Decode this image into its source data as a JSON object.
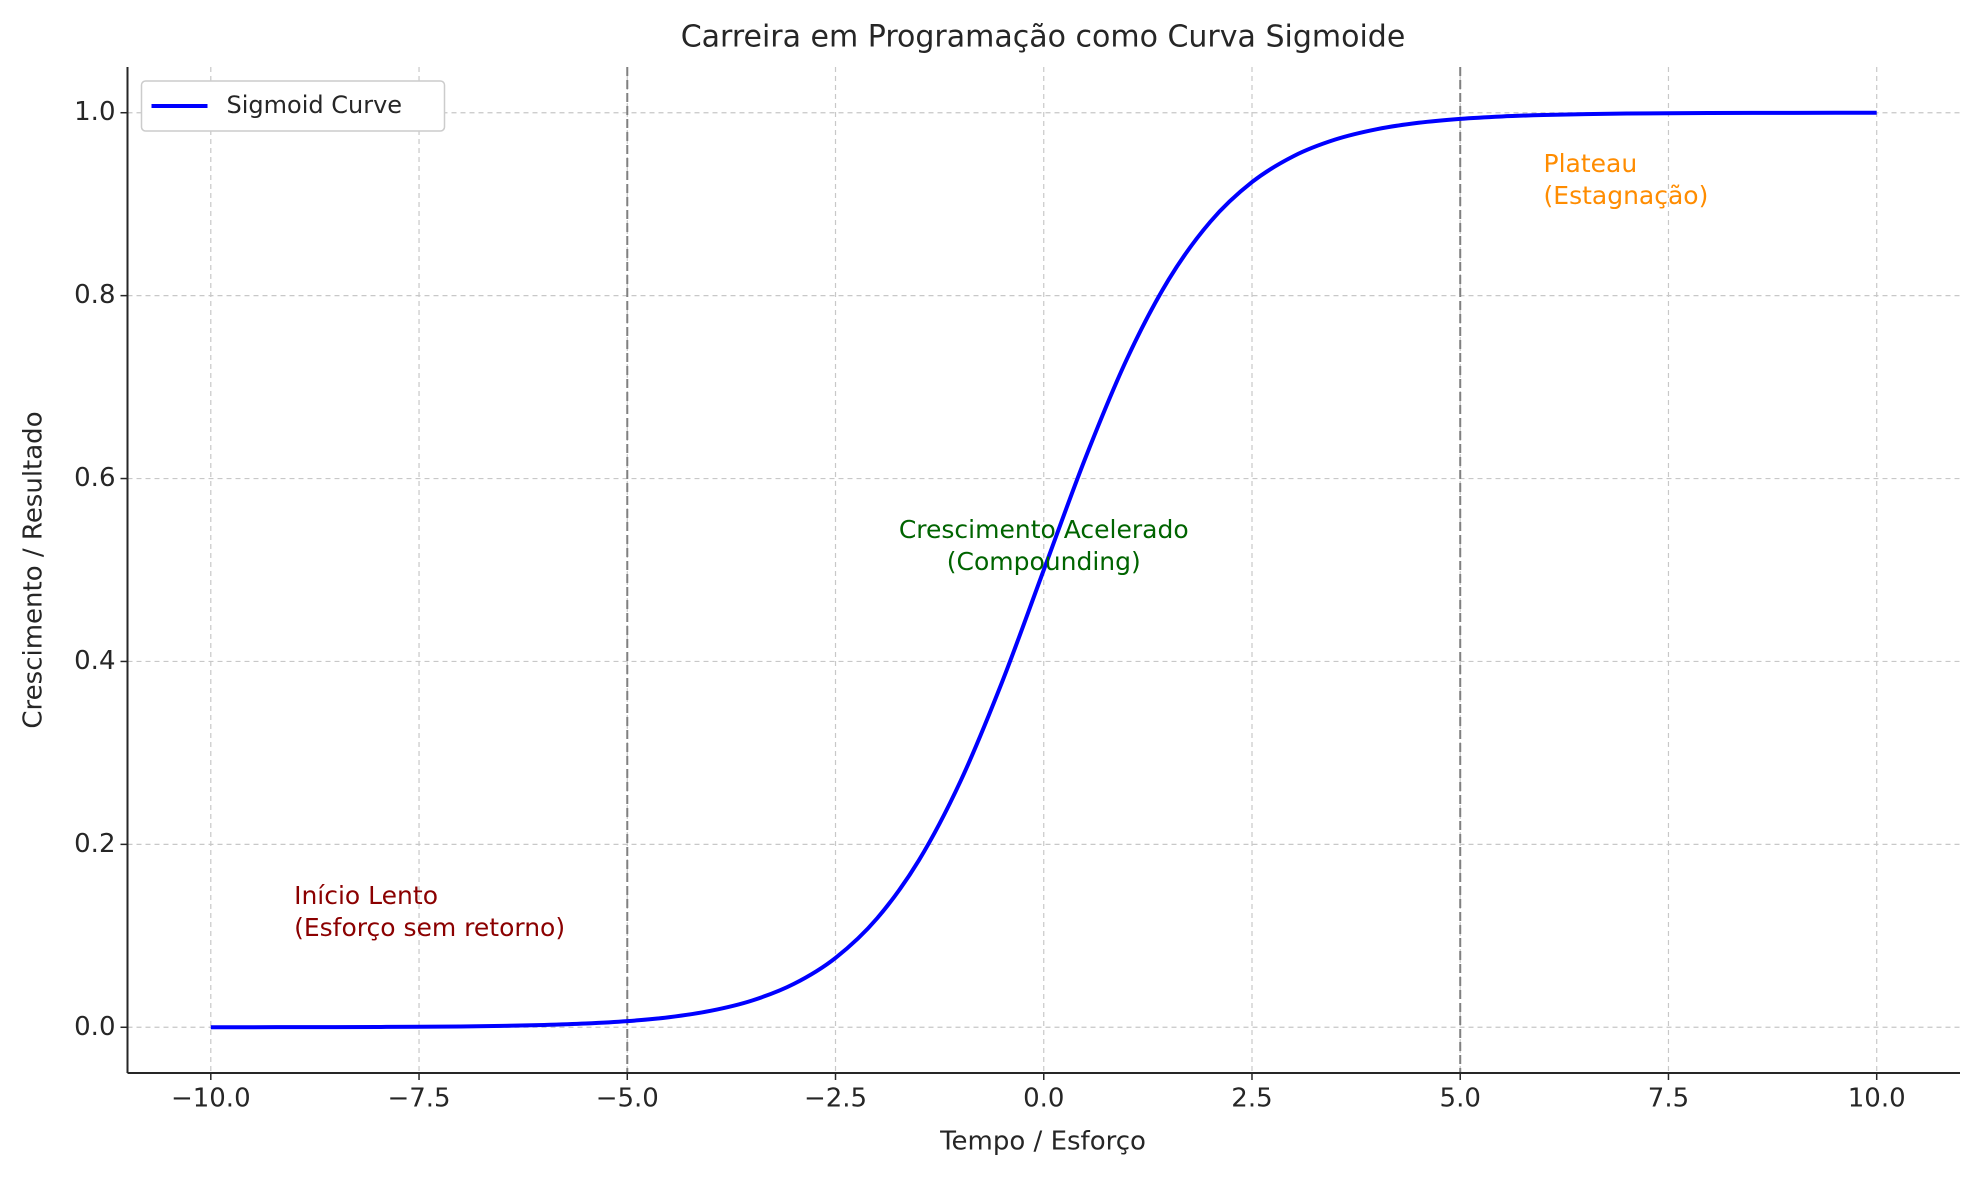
{
  "chart_data": {
    "type": "line",
    "title": "Carreira em Programação como Curva Sigmoide",
    "x_label": "Tempo / Esforço",
    "y_label": "Crescimento / Resultado",
    "x": [
      -10,
      -9.5,
      -9,
      -8.5,
      -8,
      -7.5,
      -7,
      -6.5,
      -6,
      -5.5,
      -5,
      -4.5,
      -4,
      -3.5,
      -3,
      -2.5,
      -2,
      -1.5,
      -1,
      -0.5,
      0,
      0.5,
      1,
      1.5,
      2,
      2.5,
      3,
      3.5,
      4,
      4.5,
      5,
      5.5,
      6,
      6.5,
      7,
      7.5,
      8,
      8.5,
      9,
      9.5,
      10
    ],
    "series": [
      {
        "name": "Sigmoid Curve",
        "color": "#0000ff",
        "values": [
          5e-05,
          7e-05,
          0.00012,
          0.0002,
          0.00034,
          0.00055,
          0.00091,
          0.0015,
          0.00247,
          0.00407,
          0.00669,
          0.01099,
          0.01799,
          0.02931,
          0.04743,
          0.07586,
          0.1192,
          0.18243,
          0.26894,
          0.37754,
          0.5,
          0.62246,
          0.73106,
          0.81757,
          0.8808,
          0.92414,
          0.95257,
          0.97069,
          0.98201,
          0.98901,
          0.99331,
          0.99593,
          0.99753,
          0.9985,
          0.99909,
          0.99945,
          0.99966,
          0.9998,
          0.99988,
          0.99993,
          0.99995
        ]
      }
    ],
    "xlim": [
      -11,
      11
    ],
    "ylim": [
      -0.05,
      1.05
    ],
    "xticks": [
      {
        "value": -10,
        "label": "−10.0"
      },
      {
        "value": -7.5,
        "label": "−7.5"
      },
      {
        "value": -5,
        "label": "−5.0"
      },
      {
        "value": -2.5,
        "label": "−2.5"
      },
      {
        "value": 0,
        "label": "0.0"
      },
      {
        "value": 2.5,
        "label": "2.5"
      },
      {
        "value": 5,
        "label": "5.0"
      },
      {
        "value": 7.5,
        "label": "7.5"
      },
      {
        "value": 10,
        "label": "10.0"
      }
    ],
    "yticks": [
      {
        "value": 0,
        "label": "0.0"
      },
      0.2,
      0.4,
      0.6,
      0.8,
      {
        "value": 1,
        "label": "1.0"
      }
    ],
    "vlines": [
      -5,
      5
    ],
    "vline_color": "#808080",
    "grid": true,
    "legend": "upper left",
    "annotations": [
      {
        "lines": [
          "Início Lento",
          "(Esforço sem retorno)"
        ],
        "x": -9,
        "y": 0.1,
        "color": "#8b0000",
        "align": "left"
      },
      {
        "lines": [
          "Crescimento Acelerado",
          "(Compounding)"
        ],
        "x": 0,
        "y": 0.5,
        "color": "#006400",
        "align": "center"
      },
      {
        "lines": [
          "Plateau",
          "(Estagnação)"
        ],
        "x": 6,
        "y": 0.9,
        "color": "#ff8c00",
        "align": "left"
      }
    ]
  }
}
